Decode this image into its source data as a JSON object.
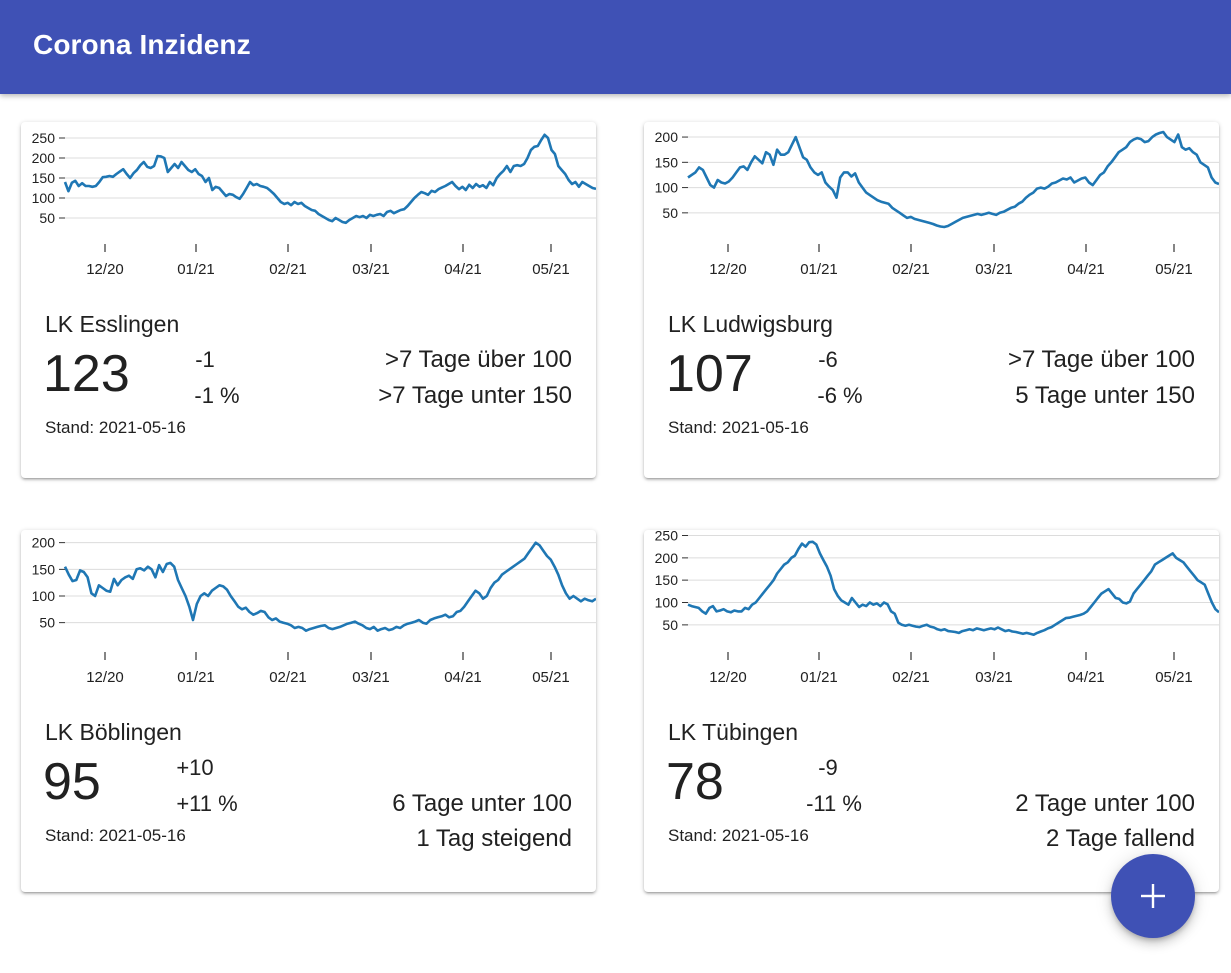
{
  "app": {
    "title": "Corona Inzidenz"
  },
  "cards": [
    {
      "name": "LK Esslingen",
      "value": "123",
      "delta": "-1",
      "delta_pct": "-1 %",
      "stand": "Stand: 2021-05-16",
      "status": [
        ">7 Tage über 100",
        ">7 Tage unter 150"
      ],
      "chart_data": {
        "type": "line",
        "x_tick_labels": [
          "12/20",
          "01/21",
          "02/21",
          "03/21",
          "04/21",
          "05/21"
        ],
        "y_ticks": [
          50,
          100,
          150,
          200,
          250
        ],
        "y_tick_labels": [
          "50",
          "100",
          "150",
          "200",
          "250"
        ],
        "ylim": [
          25,
          265
        ],
        "grid": true,
        "series": [
          {
            "color": "#1f77b4",
            "values": [
              140,
              117,
              138,
              143,
              130,
              137,
              130,
              130,
              128,
              130,
              140,
              152,
              153,
              155,
              153,
              160,
              166,
              172,
              160,
              150,
              162,
              170,
              182,
              190,
              178,
              175,
              180,
              205,
              204,
              200,
              165,
              175,
              185,
              175,
              190,
              180,
              170,
              165,
              172,
              160,
              155,
              140,
              150,
              120,
              128,
              125,
              115,
              105,
              110,
              108,
              102,
              98,
              110,
              125,
              140,
              132,
              135,
              130,
              128,
              125,
              118,
              110,
              100,
              90,
              85,
              88,
              82,
              90,
              85,
              88,
              80,
              75,
              70,
              68,
              60,
              55,
              50,
              45,
              42,
              50,
              45,
              40,
              38,
              45,
              50,
              55,
              52,
              55,
              50,
              58,
              55,
              58,
              60,
              55,
              65,
              68,
              62,
              66,
              70,
              72,
              80,
              90,
              100,
              108,
              115,
              112,
              108,
              118,
              115,
              122,
              126,
              130,
              135,
              140,
              130,
              122,
              128,
              120,
              133,
              125,
              135,
              128,
              132,
              125,
              140,
              132,
              150,
              160,
              168,
              180,
              165,
              180,
              182,
              180,
              185,
              200,
              220,
              228,
              230,
              245,
              258,
              250,
              220,
              210,
              180,
              170,
              160,
              145,
              135,
              140,
              128,
              140,
              135,
              130,
              125,
              123
            ]
          }
        ]
      }
    },
    {
      "name": "LK Ludwigsburg",
      "value": "107",
      "delta": "-6",
      "delta_pct": "-6 %",
      "stand": "Stand: 2021-05-16",
      "status": [
        ">7 Tage über 100",
        "5 Tage unter 150"
      ],
      "chart_data": {
        "type": "line",
        "x_tick_labels": [
          "12/20",
          "01/21",
          "02/21",
          "03/21",
          "04/21",
          "05/21"
        ],
        "y_ticks": [
          50,
          100,
          150,
          200
        ],
        "y_tick_labels": [
          "50",
          "100",
          "150",
          "200"
        ],
        "ylim": [
          20,
          210
        ],
        "grid": true,
        "series": [
          {
            "color": "#1f77b4",
            "values": [
              120,
              125,
              130,
              140,
              135,
              120,
              105,
              100,
              115,
              110,
              108,
              112,
              120,
              130,
              140,
              142,
              135,
              150,
              162,
              155,
              148,
              170,
              165,
              145,
              175,
              165,
              165,
              170,
              185,
              200,
              180,
              160,
              155,
              140,
              130,
              125,
              130,
              110,
              102,
              95,
              80,
              120,
              130,
              130,
              122,
              128,
              110,
              100,
              90,
              85,
              80,
              75,
              72,
              70,
              68,
              60,
              55,
              50,
              45,
              40,
              42,
              38,
              36,
              34,
              32,
              30,
              28,
              25,
              23,
              22,
              24,
              28,
              32,
              36,
              40,
              42,
              44,
              46,
              48,
              46,
              48,
              50,
              48,
              46,
              50,
              52,
              56,
              60,
              62,
              68,
              72,
              80,
              86,
              90,
              98,
              100,
              98,
              102,
              108,
              110,
              114,
              118,
              116,
              120,
              110,
              114,
              118,
              120,
              110,
              105,
              115,
              125,
              130,
              142,
              150,
              160,
              170,
              175,
              180,
              190,
              195,
              198,
              196,
              190,
              192,
              200,
              205,
              208,
              210,
              200,
              195,
              190,
              205,
              180,
              175,
              178,
              170,
              165,
              150,
              145,
              140,
              120,
              110,
              107
            ]
          }
        ]
      }
    },
    {
      "name": "LK Böblingen",
      "value": "95",
      "delta": "+10",
      "delta_pct": "+11 %",
      "stand": "Stand: 2021-05-16",
      "status": [
        "6 Tage unter 100",
        "1 Tag steigend"
      ],
      "chart_data": {
        "type": "line",
        "x_tick_labels": [
          "12/20",
          "01/21",
          "02/21",
          "03/21",
          "04/21",
          "05/21"
        ],
        "y_ticks": [
          50,
          100,
          150,
          200
        ],
        "y_tick_labels": [
          "50",
          "100",
          "150",
          "200"
        ],
        "ylim": [
          25,
          205
        ],
        "grid": true,
        "series": [
          {
            "color": "#1f77b4",
            "values": [
              155,
              140,
              128,
              130,
              148,
              145,
              135,
              105,
              100,
              120,
              115,
              110,
              108,
              132,
              120,
              130,
              135,
              138,
              132,
              150,
              152,
              148,
              155,
              150,
              135,
              158,
              145,
              160,
              162,
              155,
              130,
              115,
              100,
              80,
              55,
              85,
              100,
              105,
              100,
              110,
              115,
              120,
              118,
              112,
              100,
              90,
              80,
              75,
              78,
              70,
              65,
              68,
              72,
              70,
              60,
              55,
              58,
              52,
              50,
              48,
              45,
              40,
              42,
              40,
              35,
              38,
              40,
              42,
              44,
              45,
              40,
              38,
              40,
              42,
              45,
              48,
              50,
              52,
              48,
              45,
              40,
              38,
              42,
              35,
              38,
              40,
              36,
              38,
              42,
              40,
              45,
              48,
              50,
              52,
              55,
              50,
              48,
              55,
              58,
              60,
              62,
              65,
              60,
              62,
              70,
              72,
              80,
              90,
              100,
              110,
              105,
              95,
              100,
              115,
              125,
              130,
              140,
              145,
              150,
              155,
              160,
              165,
              170,
              180,
              190,
              200,
              195,
              185,
              175,
              168,
              155,
              140,
              120,
              105,
              95,
              100,
              95,
              90,
              95,
              92,
              90,
              95
            ]
          }
        ]
      }
    },
    {
      "name": "LK Tübingen",
      "value": "78",
      "delta": "-9",
      "delta_pct": "-11 %",
      "stand": "Stand: 2021-05-16",
      "status": [
        "2 Tage unter 100",
        "2 Tage fallend"
      ],
      "chart_data": {
        "type": "line",
        "x_tick_labels": [
          "12/20",
          "01/21",
          "02/21",
          "03/21",
          "04/21",
          "05/21"
        ],
        "y_ticks": [
          50,
          100,
          150,
          200,
          250
        ],
        "y_tick_labels": [
          "50",
          "100",
          "150",
          "200",
          "250"
        ],
        "ylim": [
          25,
          240
        ],
        "grid": true,
        "series": [
          {
            "color": "#1f77b4",
            "values": [
              95,
              92,
              90,
              88,
              80,
              75,
              88,
              92,
              80,
              82,
              85,
              80,
              78,
              82,
              80,
              80,
              88,
              85,
              95,
              100,
              110,
              120,
              130,
              140,
              150,
              165,
              175,
              185,
              190,
              200,
              205,
              220,
              232,
              225,
              235,
              236,
              230,
              210,
              195,
              180,
              160,
              130,
              115,
              105,
              100,
              95,
              110,
              100,
              90,
              95,
              92,
              100,
              95,
              98,
              92,
              100,
              96,
              80,
              75,
              55,
              50,
              48,
              50,
              48,
              46,
              45,
              48,
              50,
              46,
              44,
              40,
              38,
              40,
              36,
              35,
              34,
              32,
              36,
              38,
              40,
              38,
              42,
              40,
              38,
              40,
              42,
              40,
              44,
              40,
              36,
              38,
              35,
              34,
              32,
              30,
              32,
              30,
              28,
              32,
              35,
              38,
              42,
              45,
              50,
              55,
              60,
              65,
              66,
              68,
              70,
              72,
              75,
              80,
              90,
              100,
              110,
              120,
              125,
              130,
              120,
              110,
              108,
              100,
              98,
              102,
              120,
              130,
              140,
              150,
              160,
              170,
              185,
              190,
              195,
              200,
              205,
              210,
              200,
              195,
              190,
              180,
              170,
              160,
              150,
              145,
              140,
              120,
              100,
              85,
              78
            ]
          }
        ]
      }
    }
  ],
  "fab": {
    "icon": "plus-icon",
    "color": "#3f51b5"
  }
}
